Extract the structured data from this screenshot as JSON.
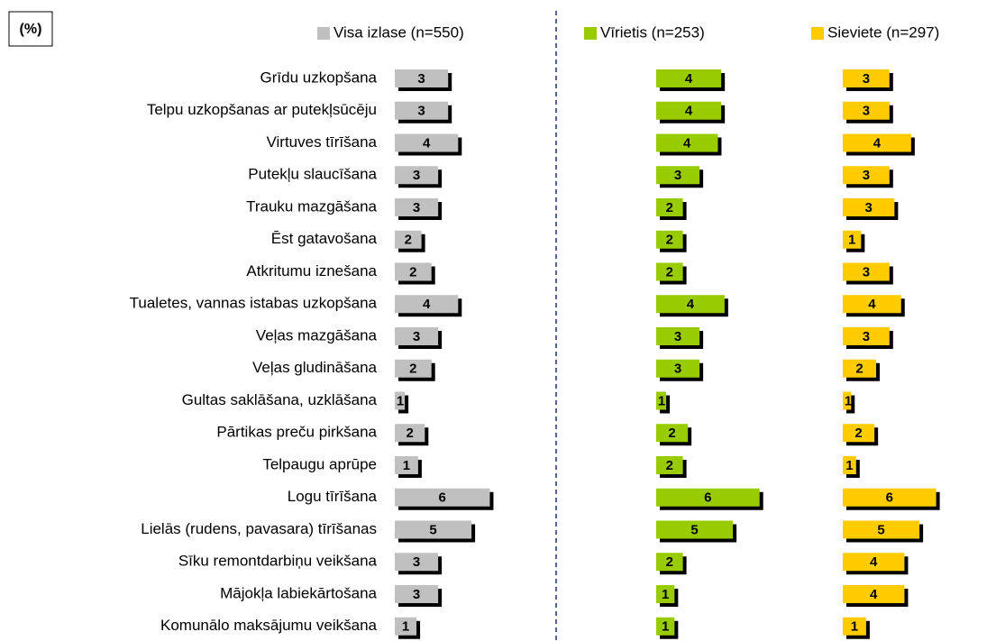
{
  "chart_data": {
    "type": "bar",
    "orientation": "horizontal",
    "title": "(%)",
    "categories": [
      "Grīdu uzkopšana",
      "Telpu uzkopšanas ar putekļsūcēju",
      "Virtuves tīrīšana",
      "Putekļu slaucīšana",
      "Trauku mazgāšana",
      "Ēst gatavošana",
      "Atkritumu iznešana",
      "Tualetes, vannas istabas uzkopšana",
      "Veļas mazgāšana",
      "Veļas gludināšana",
      "Gultas saklāšana, uzklāšana",
      "Pārtikas preču pirkšana",
      "Telpaugu aprūpe",
      "Logu tīrīšana",
      "Lielās (rudens, pavasara) tīrīšanas",
      "Sīku remontdarbiņu veikšana",
      "Mājokļa labiekārtošana",
      "Komunālo maksājumu veikšana"
    ],
    "series": [
      {
        "name": "Visa izlase (n=550)",
        "color": "#c0c0c0",
        "values": [
          3.2,
          3.2,
          3.8,
          2.6,
          2.6,
          1.6,
          2.2,
          3.8,
          2.6,
          2.2,
          0.6,
          1.8,
          1.4,
          5.7,
          4.6,
          2.6,
          2.6,
          1.3
        ],
        "value_labels": [
          "3",
          "3",
          "4",
          "3",
          "3",
          "2",
          "2",
          "4",
          "3",
          "2",
          "1",
          "2",
          "1",
          "6",
          "5",
          "3",
          "3",
          "1"
        ]
      },
      {
        "name": "Vīrietis (n=253)",
        "color": "#99cc00",
        "values": [
          3.9,
          3.9,
          3.7,
          2.6,
          1.6,
          1.6,
          1.6,
          4.1,
          2.6,
          2.6,
          0.6,
          1.9,
          1.6,
          6.2,
          4.6,
          1.6,
          1.1,
          1.1
        ],
        "value_labels": [
          "4",
          "4",
          "4",
          "3",
          "2",
          "2",
          "2",
          "4",
          "3",
          "3",
          "1",
          "2",
          "2",
          "6",
          "5",
          "2",
          "1",
          "1"
        ]
      },
      {
        "name": "Sieviete (n=297)",
        "color": "#ffcc00",
        "values": [
          2.8,
          2.8,
          4.1,
          2.8,
          3.1,
          1.1,
          2.8,
          3.5,
          2.8,
          2.0,
          0.5,
          1.9,
          0.8,
          5.6,
          4.6,
          3.7,
          3.7,
          1.4
        ],
        "value_labels": [
          "3",
          "3",
          "4",
          "3",
          "3",
          "1",
          "3",
          "4",
          "3",
          "2",
          "1",
          "2",
          "1",
          "6",
          "5",
          "4",
          "4",
          "1"
        ]
      }
    ]
  }
}
